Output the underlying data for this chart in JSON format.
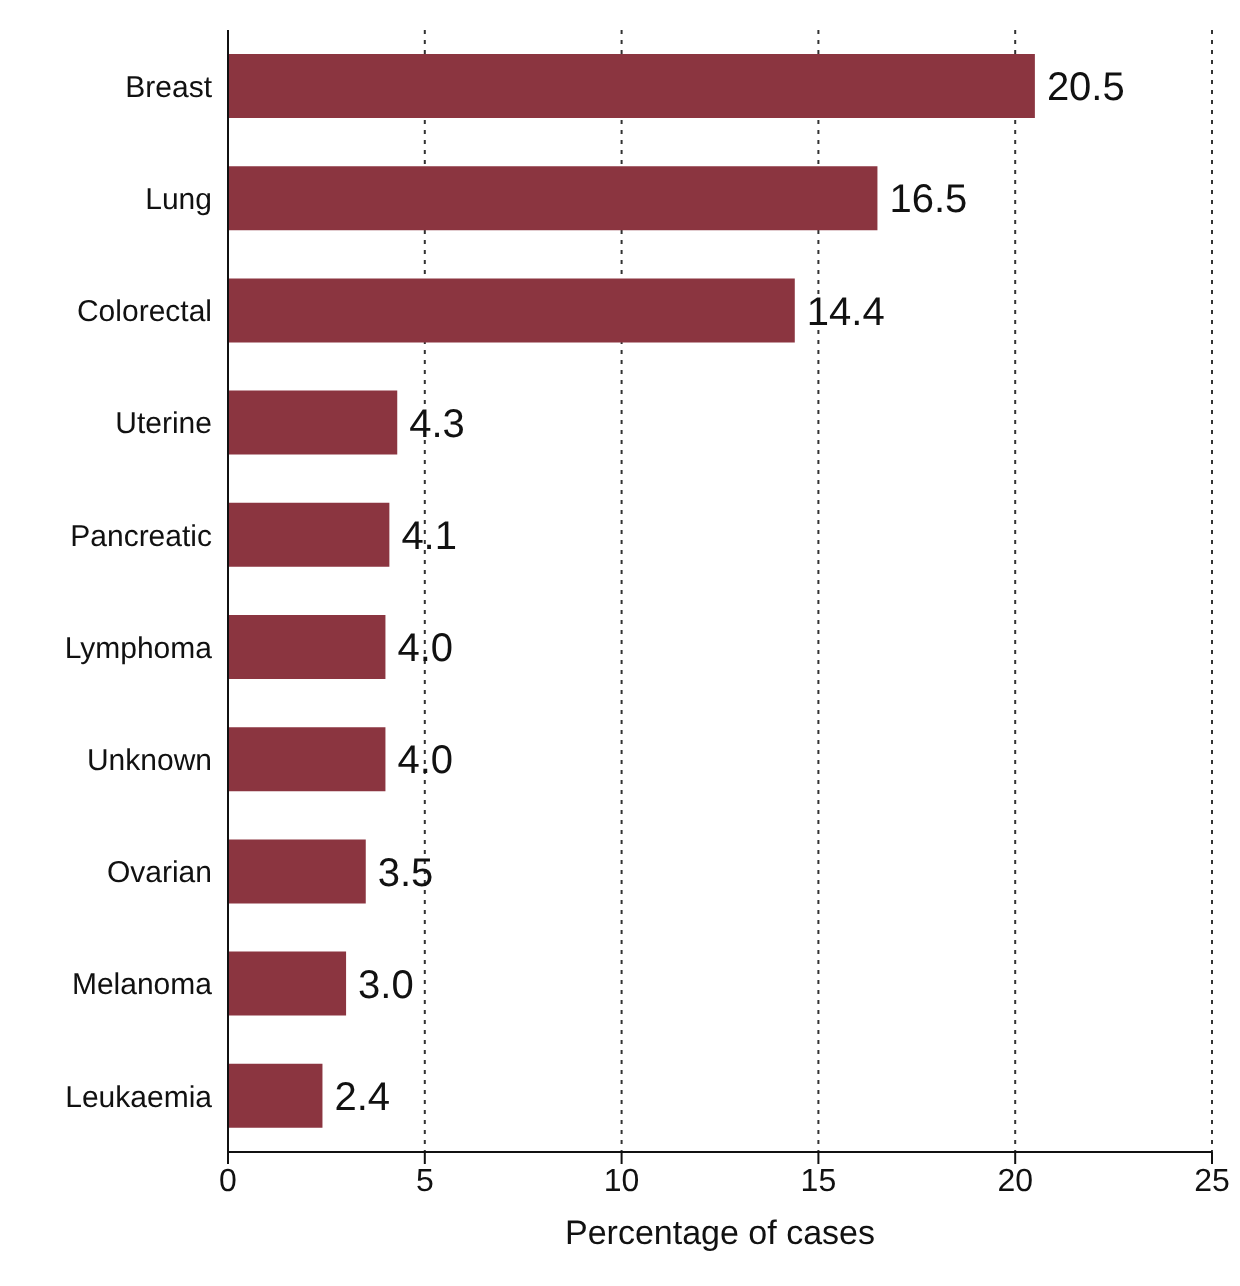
{
  "chart_data": {
    "type": "bar",
    "orientation": "horizontal",
    "xlabel": "Percentage of cases",
    "categories": [
      "Breast",
      "Lung",
      "Colorectal",
      "Uterine",
      "Pancreatic",
      "Lymphoma",
      "Unknown",
      "Ovarian",
      "Melanoma",
      "Leukaemia"
    ],
    "values": [
      20.5,
      16.5,
      14.4,
      4.3,
      4.1,
      4.0,
      4.0,
      3.5,
      3.0,
      2.4
    ],
    "value_labels": [
      "20.5",
      "16.5",
      "14.4",
      "4.3",
      "4.1",
      "4.0",
      "4.0",
      "3.5",
      "3.0",
      "2.4"
    ],
    "color": "#8b3540",
    "xlim": [
      0,
      25
    ],
    "xticks": [
      0,
      5,
      10,
      15,
      20,
      25
    ],
    "grid": "x"
  }
}
